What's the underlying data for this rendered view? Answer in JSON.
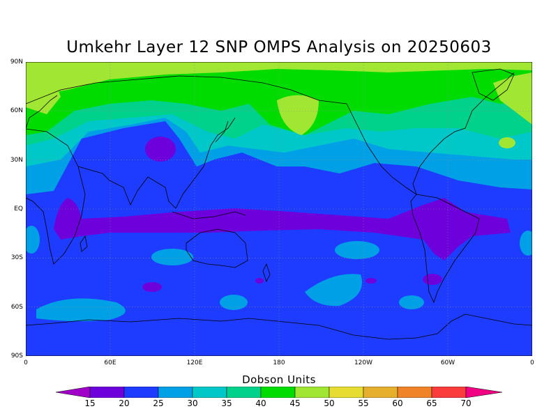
{
  "title": "Umkehr Layer 12 SNP OMPS Analysis on 20250603",
  "colorbar": {
    "title": "Dobson Units",
    "ticks": [
      "15",
      "20",
      "25",
      "30",
      "35",
      "40",
      "45",
      "50",
      "55",
      "60",
      "65",
      "70"
    ],
    "colors": [
      "#a000c8",
      "#6e00dc",
      "#1e3cff",
      "#00a0e6",
      "#00c8c8",
      "#00d28c",
      "#00dc00",
      "#a0e632",
      "#e6dc32",
      "#e6af2d",
      "#f08228",
      "#fa3c3c",
      "#f00082"
    ]
  },
  "map": {
    "y_ticks": [
      "90N",
      "60N",
      "30N",
      "EQ",
      "30S",
      "60S",
      "90S"
    ],
    "x_ticks": [
      "0",
      "60E",
      "120E",
      "180",
      "120W",
      "60W",
      "0"
    ],
    "projection": "cylindrical equidistant",
    "grid": "dotted"
  }
}
